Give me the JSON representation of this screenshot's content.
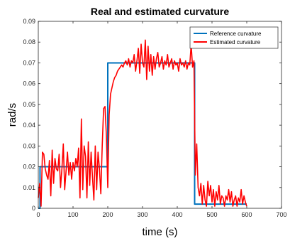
{
  "chart_data": {
    "type": "line",
    "title": "Real and estimated curvature",
    "xlabel": "time (s)",
    "ylabel": "rad/s",
    "xlim": [
      0,
      700
    ],
    "ylim": [
      0,
      0.09
    ],
    "xticks": [
      0,
      100,
      200,
      300,
      400,
      500,
      600,
      700
    ],
    "yticks": [
      0,
      0.01,
      0.02,
      0.03,
      0.04,
      0.05,
      0.06,
      0.07,
      0.08,
      0.09
    ],
    "xtick_labels": [
      "0",
      "100",
      "200",
      "300",
      "400",
      "500",
      "600",
      "700"
    ],
    "ytick_labels": [
      "0",
      "0.01",
      "0.02",
      "0.03",
      "0.04",
      "0.05",
      "0.06",
      "0.07",
      "0.08",
      "0.09"
    ],
    "grid": false,
    "legend_position": "top-right",
    "series": [
      {
        "name": "Reference curvature",
        "color": "#0072BD",
        "x": [
          0,
          5,
          5,
          200,
          200,
          450,
          450,
          600
        ],
        "y": [
          0,
          0,
          0.02,
          0.02,
          0.07,
          0.07,
          0.002,
          0.002
        ]
      },
      {
        "name": "Estimated curvature",
        "color": "#FF0000",
        "x": [
          0,
          4,
          8,
          12,
          16,
          20,
          24,
          28,
          32,
          36,
          40,
          44,
          48,
          52,
          56,
          60,
          64,
          68,
          72,
          76,
          80,
          84,
          88,
          92,
          96,
          100,
          104,
          108,
          112,
          116,
          120,
          124,
          128,
          132,
          136,
          140,
          144,
          148,
          152,
          156,
          160,
          164,
          168,
          172,
          176,
          180,
          184,
          188,
          192,
          196,
          200,
          204,
          208,
          212,
          216,
          220,
          224,
          228,
          232,
          236,
          240,
          244,
          248,
          252,
          256,
          260,
          264,
          268,
          272,
          276,
          280,
          284,
          288,
          292,
          296,
          300,
          304,
          308,
          312,
          316,
          320,
          324,
          328,
          332,
          336,
          340,
          344,
          348,
          352,
          356,
          360,
          364,
          368,
          372,
          376,
          380,
          384,
          388,
          392,
          396,
          400,
          404,
          408,
          412,
          416,
          420,
          424,
          428,
          432,
          436,
          440,
          444,
          448,
          452,
          456,
          460,
          464,
          468,
          472,
          476,
          480,
          484,
          488,
          492,
          496,
          500,
          504,
          508,
          512,
          516,
          520,
          524,
          528,
          532,
          536,
          540,
          544,
          548,
          552,
          556,
          560,
          564,
          568,
          572,
          576,
          580,
          584,
          588,
          592,
          596,
          600
        ],
        "y": [
          0.005,
          0.012,
          0.001,
          0.027,
          0.026,
          0.019,
          0.016,
          0.014,
          0.023,
          0.006,
          0.028,
          0.012,
          0.024,
          0.019,
          0.018,
          0.026,
          0.01,
          0.019,
          0.031,
          0.009,
          0.018,
          0.027,
          0.016,
          0.022,
          0.014,
          0.022,
          0.018,
          0.024,
          0.02,
          0.029,
          0.005,
          0.043,
          0.009,
          0.03,
          0.025,
          0.005,
          0.032,
          0.011,
          0.027,
          0.015,
          0.004,
          0.03,
          0.009,
          0.027,
          0.019,
          0.007,
          0.03,
          0.048,
          0.049,
          0.035,
          0.01,
          0.045,
          0.055,
          0.058,
          0.061,
          0.063,
          0.064,
          0.066,
          0.067,
          0.068,
          0.069,
          0.068,
          0.07,
          0.071,
          0.069,
          0.072,
          0.068,
          0.071,
          0.07,
          0.074,
          0.066,
          0.071,
          0.077,
          0.065,
          0.079,
          0.07,
          0.068,
          0.081,
          0.062,
          0.078,
          0.066,
          0.074,
          0.064,
          0.073,
          0.067,
          0.072,
          0.075,
          0.068,
          0.07,
          0.073,
          0.067,
          0.071,
          0.069,
          0.074,
          0.068,
          0.07,
          0.072,
          0.067,
          0.071,
          0.069,
          0.07,
          0.066,
          0.072,
          0.069,
          0.07,
          0.068,
          0.071,
          0.067,
          0.07,
          0.069,
          0.079,
          0.068,
          0.071,
          0.016,
          0.031,
          0.01,
          0.006,
          0.012,
          0.002,
          0.011,
          0.004,
          0.001,
          0.013,
          0.006,
          0.011,
          0.003,
          0.009,
          0.001,
          0.008,
          0.004,
          0.011,
          0.002,
          0.006,
          0.005,
          0.001,
          0.006,
          0.004,
          0.009,
          0.003,
          0.008,
          0.001,
          0.004,
          0.006,
          0.001,
          0.005,
          0.003,
          0.009,
          0.002,
          0.006,
          0.003,
          0.001
        ]
      }
    ]
  }
}
